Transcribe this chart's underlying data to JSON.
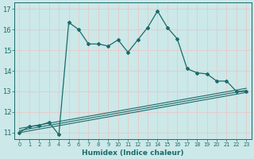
{
  "xlabel": "Humidex (Indice chaleur)",
  "xlim": [
    -0.5,
    23.5
  ],
  "ylim": [
    10.7,
    17.3
  ],
  "yticks": [
    11,
    12,
    13,
    14,
    15,
    16,
    17
  ],
  "xticks": [
    0,
    1,
    2,
    3,
    4,
    5,
    6,
    7,
    8,
    9,
    10,
    11,
    12,
    13,
    14,
    15,
    16,
    17,
    18,
    19,
    20,
    21,
    22,
    23
  ],
  "bg_color": "#cce8e8",
  "line_color": "#1a6b6b",
  "grid_color": "#b0d0d0",
  "line1_x": [
    0,
    1,
    2,
    3,
    4,
    5,
    6,
    7,
    8,
    9,
    10,
    11,
    12,
    13,
    14,
    15,
    16,
    17,
    18,
    19,
    20,
    21,
    22,
    23
  ],
  "line1_y": [
    11.0,
    11.3,
    11.35,
    11.5,
    10.9,
    16.35,
    16.0,
    15.3,
    15.3,
    15.2,
    15.5,
    14.9,
    15.5,
    16.1,
    16.9,
    16.1,
    15.55,
    14.1,
    13.9,
    13.85,
    13.5,
    13.5,
    13.0,
    13.0
  ],
  "line2_x": [
    0,
    23
  ],
  "line2_y": [
    11.0,
    12.95
  ],
  "line3_x": [
    0,
    23
  ],
  "line3_y": [
    11.1,
    13.05
  ],
  "line4_x": [
    0,
    23
  ],
  "line4_y": [
    11.2,
    13.15
  ]
}
